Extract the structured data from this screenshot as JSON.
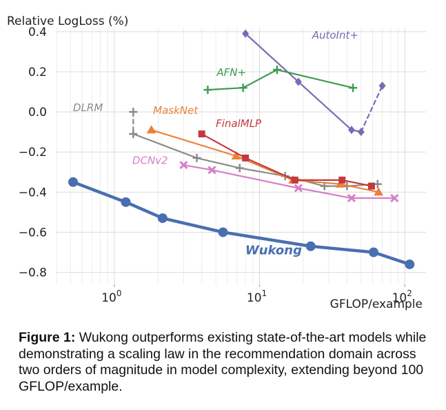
{
  "chart_data": {
    "type": "line",
    "ylabel": "Relative LogLoss (%)",
    "xlabel": "GFLOP/example",
    "xscale": "log",
    "xlim": [
      0.4,
      140
    ],
    "ylim": [
      -0.86,
      0.42
    ],
    "xticks": [
      1,
      10,
      100
    ],
    "xtick_labels": [
      {
        "base": "10",
        "exp": "0"
      },
      {
        "base": "10",
        "exp": "1"
      },
      {
        "base": "10",
        "exp": "2"
      }
    ],
    "yticks": [
      0.4,
      0.2,
      0.0,
      -0.2,
      -0.4,
      -0.6,
      -0.8
    ],
    "ytick_labels": [
      "0.4",
      "0.2",
      "0.0",
      "−0.2",
      "−0.4",
      "−0.6",
      "−0.8"
    ],
    "grid": true,
    "series": [
      {
        "name": "AutoInt+",
        "color": "#7b68b6",
        "marker": "diamond",
        "x": [
          8,
          18.5,
          43,
          50,
          70
        ],
        "y": [
          0.39,
          0.15,
          -0.09,
          -0.1,
          0.13
        ],
        "dashed_from": 3
      },
      {
        "name": "AFN+",
        "color": "#3f9b50",
        "marker": "plus",
        "x": [
          4.4,
          7.7,
          13.2,
          44
        ],
        "y": [
          0.11,
          0.12,
          0.21,
          0.12
        ]
      },
      {
        "name": "DLRM",
        "color": "#8a8a8a",
        "marker": "plus",
        "dashed_upto": 1,
        "x": [
          1.35,
          1.35,
          3.7,
          7.3,
          15,
          28,
          40,
          65
        ],
        "y": [
          0.0,
          -0.11,
          -0.23,
          -0.28,
          -0.32,
          -0.37,
          -0.37,
          -0.36
        ]
      },
      {
        "name": "MaskNet",
        "color": "#e8823a",
        "marker": "triangle",
        "x": [
          1.8,
          6.9,
          17,
          36,
          66
        ],
        "y": [
          -0.09,
          -0.22,
          -0.34,
          -0.36,
          -0.4
        ]
      },
      {
        "name": "FinalMLP",
        "color": "#c4393d",
        "marker": "square",
        "x": [
          4,
          8,
          17.5,
          37,
          59
        ],
        "y": [
          -0.11,
          -0.23,
          -0.34,
          -0.34,
          -0.37
        ]
      },
      {
        "name": "DCNv2",
        "color": "#d67fc8",
        "marker": "x",
        "x": [
          3,
          4.7,
          18.5,
          43,
          85
        ],
        "y": [
          -0.265,
          -0.29,
          -0.38,
          -0.43,
          -0.43
        ]
      },
      {
        "name": "Wukong",
        "color": "#4a6fb0",
        "marker": "circle",
        "x": [
          0.52,
          1.2,
          2.15,
          5.6,
          22.5,
          61,
          108
        ],
        "y": [
          -0.35,
          -0.45,
          -0.53,
          -0.6,
          -0.67,
          -0.7,
          -0.76
        ]
      }
    ],
    "series_labels": [
      {
        "series": "AutoInt+",
        "x": 23,
        "y": 0.365,
        "anchor": "start"
      },
      {
        "series": "AFN+",
        "x": 6.4,
        "y": 0.18,
        "anchor": "middle"
      },
      {
        "series": "DLRM",
        "x": 0.52,
        "y": 0.003,
        "anchor": "start"
      },
      {
        "series": "MaskNet",
        "x": 1.85,
        "y": -0.01,
        "anchor": "start"
      },
      {
        "series": "FinalMLP",
        "x": 5.0,
        "y": -0.075,
        "anchor": "start"
      },
      {
        "series": "DCNv2",
        "x": 1.33,
        "y": -0.26,
        "anchor": "start"
      },
      {
        "series": "Wukong",
        "x": 12.5,
        "y": -0.71,
        "anchor": "middle"
      }
    ]
  },
  "caption": {
    "bold": "Figure 1:",
    "text": " Wukong outperforms existing state-of-the-art models while demonstrating a scaling law in the recommendation domain across two orders of magnitude in model complexity, extending beyond 100 GFLOP/example."
  }
}
